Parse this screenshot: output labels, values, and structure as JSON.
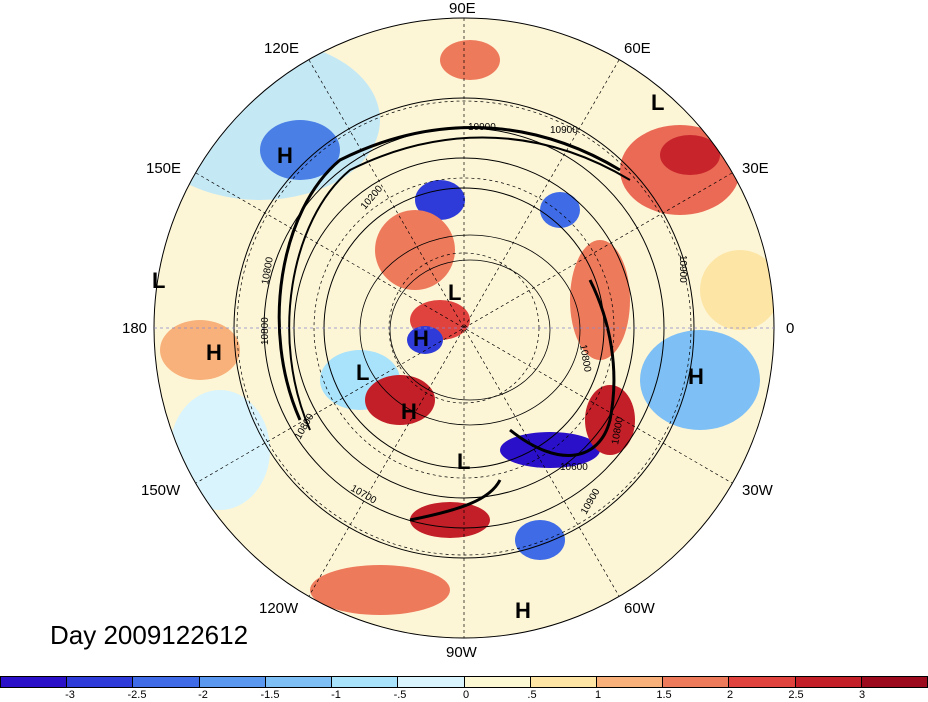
{
  "title": "Day 2009122612",
  "longitude_labels": {
    "e90": "90E",
    "e60": "60E",
    "e30": "30E",
    "zero": "0",
    "w30": "30W",
    "w60": "60W",
    "w90": "90W",
    "w120": "120W",
    "w150": "150W",
    "w180": "180",
    "e150": "150E",
    "e120": "120E"
  },
  "pressure_centers": [
    {
      "type": "H",
      "lon_lat": [
        118,
        45
      ]
    },
    {
      "type": "L",
      "lon_lat": [
        40,
        40
      ]
    },
    {
      "type": "L",
      "lon_lat": [
        178,
        38
      ]
    },
    {
      "type": "H",
      "lon_lat": [
        -176,
        42
      ]
    },
    {
      "type": "L",
      "lon_lat": [
        100,
        80
      ]
    },
    {
      "type": "H",
      "lon_lat": [
        -150,
        78
      ]
    },
    {
      "type": "L",
      "lon_lat": [
        -140,
        65
      ]
    },
    {
      "type": "H",
      "lon_lat": [
        -118,
        62
      ]
    },
    {
      "type": "L",
      "lon_lat": [
        -100,
        55
      ]
    },
    {
      "type": "H",
      "lon_lat": [
        -15,
        30
      ]
    },
    {
      "type": "H",
      "lon_lat": [
        -88,
        18
      ]
    }
  ],
  "contour_labels": [
    "10900",
    "10900",
    "10900",
    "10900",
    "10800",
    "10800",
    "10800",
    "10800",
    "10700",
    "10600",
    "10800",
    "10200"
  ],
  "colorbar": {
    "ticks": [
      "-3",
      "-2.5",
      "-2",
      "-1.5",
      "-1",
      "-.5",
      "0",
      ".5",
      "1",
      "1.5",
      "2",
      "2.5",
      "3"
    ],
    "colors": [
      "#2a10c8",
      "#2e3bd9",
      "#3f6be6",
      "#5a97ee",
      "#7ec0f5",
      "#a8e2fb",
      "#d9f4fc",
      "#fdf8d4",
      "#fde5a6",
      "#f8b17a",
      "#ee7a5c",
      "#e0433e",
      "#c21f28",
      "#9b0b1d"
    ]
  },
  "chart_data": {
    "type": "heatmap",
    "projection": "north polar stereographic",
    "field_scale": [
      -3,
      3
    ],
    "field_scale_step": 0.5,
    "contour_levels_shown": [
      10200,
      10600,
      10700,
      10800,
      10900
    ]
  }
}
